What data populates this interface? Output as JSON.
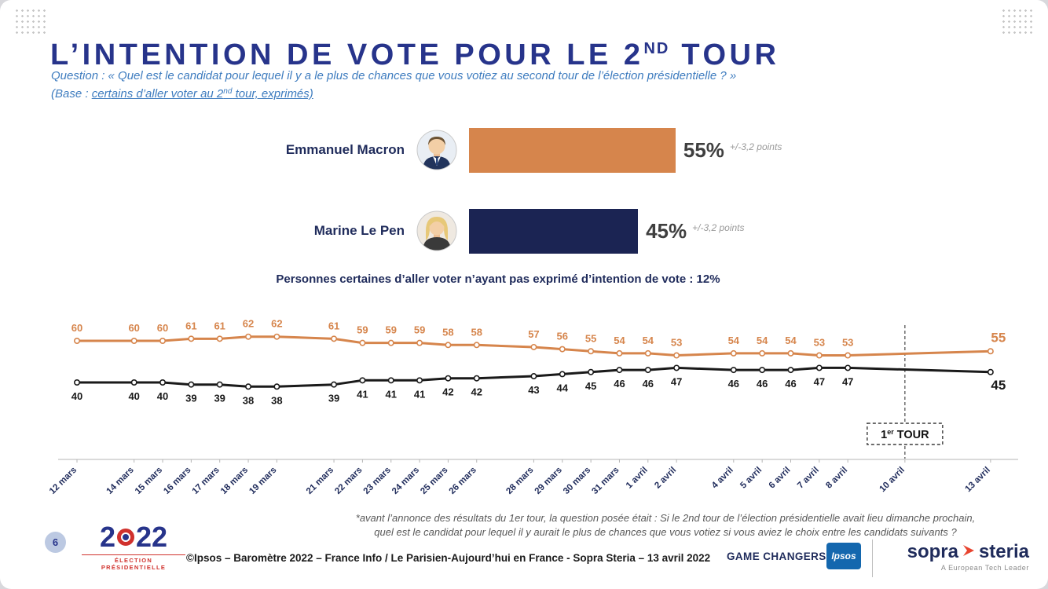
{
  "header": {
    "title_main": "L’INTENTION DE VOTE POUR LE 2",
    "title_sup": "ND",
    "title_tail": " TOUR",
    "question": "Question : « Quel est le candidat pour lequel il y a le plus de chances que vous votiez au second tour de l’élection présidentielle ? »",
    "base_prefix": "(Base : ",
    "base_underline_a": "certains d’aller voter au 2",
    "base_sup": "nd",
    "base_underline_b": " tour, exprimés)"
  },
  "bars": {
    "rows": [
      {
        "name": "Emmanuel Macron",
        "value": 55,
        "pct": "55%",
        "margin": "+/-3,2 points",
        "color": "#D6854C"
      },
      {
        "name": "Marine Le Pen",
        "value": 45,
        "pct": "45%",
        "margin": "+/-3,2 points",
        "color": "#1B2453"
      }
    ],
    "note": "Personnes certaines d’aller voter n’ayant pas exprimé d’intention de vote : 12%"
  },
  "chart_data": {
    "type": "line",
    "x": [
      "12 mars",
      "14 mars",
      "15 mars",
      "16 mars",
      "17 mars",
      "18 mars",
      "19 mars",
      "21 mars",
      "22 mars",
      "23 mars",
      "24 mars",
      "25 mars",
      "26 mars",
      "28 mars",
      "29 mars",
      "30 mars",
      "31 mars",
      "1 avril",
      "2 avril",
      "4 avril",
      "5 avril",
      "6 avril",
      "7 avril",
      "8 avril",
      "10 avril",
      "13 avril"
    ],
    "series": [
      {
        "name": "Emmanuel Macron",
        "color": "#D6854C",
        "values": [
          60,
          60,
          60,
          61,
          61,
          62,
          62,
          61,
          59,
          59,
          59,
          58,
          58,
          57,
          56,
          55,
          54,
          54,
          53,
          54,
          54,
          54,
          53,
          53,
          null,
          55
        ]
      },
      {
        "name": "Marine Le Pen",
        "color": "#1A1A1A",
        "values": [
          40,
          40,
          40,
          39,
          39,
          38,
          38,
          39,
          41,
          41,
          41,
          42,
          42,
          43,
          44,
          45,
          46,
          46,
          47,
          46,
          46,
          46,
          47,
          47,
          null,
          45
        ]
      }
    ],
    "marker": {
      "x": "10 avril",
      "text_main": "1",
      "text_sup": "er",
      "text_tail": " TOUR"
    },
    "ylim": [
      35,
      65
    ],
    "grid": false,
    "legend": "none"
  },
  "footnote": {
    "line1": "*avant l’annonce des résultats du 1er tour, la question posée était : Si le 2nd tour de l’élection présidentielle avait lieu dimanche prochain,",
    "line2": "quel est le candidat pour lequel il y aurait le plus de chances que vous votiez si vous aviez le choix entre les candidats suivants ?"
  },
  "footer": {
    "page_number": "6",
    "logo_d1": "2",
    "logo_d2": "22",
    "logo_subtitle": "ÉLECTION PRÉSIDENTIELLE",
    "copyright": "©Ipsos – Baromètre 2022 – France Info / Le Parisien-Aujourd’hui en France - Sopra Steria – 13 avril 2022",
    "game_changers": "GAME CHANGERS",
    "ipsos_label": "Ipsos",
    "sopra": "sopra",
    "steria": "steria",
    "tagline": "A European Tech Leader"
  }
}
